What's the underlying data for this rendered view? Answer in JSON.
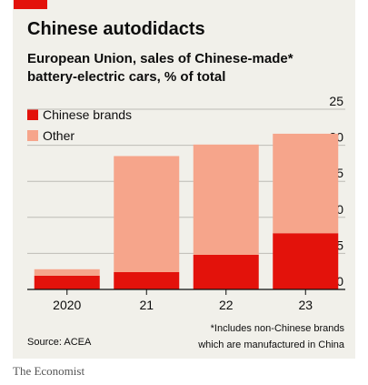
{
  "header": {
    "title": "Chinese autodidacts",
    "subtitle": "European Union, sales of Chinese-made* battery-electric cars, % of total"
  },
  "colors": {
    "chinese": "#e3120b",
    "other": "#f6a58b",
    "accent": "#e3120b",
    "panel": "#f1f0ea"
  },
  "legend": [
    {
      "label": "Chinese brands",
      "color": "#e3120b"
    },
    {
      "label": "Other",
      "color": "#f6a58b"
    }
  ],
  "chart_data": {
    "type": "bar",
    "stacked": true,
    "categories": [
      "2020",
      "21",
      "22",
      "23"
    ],
    "series": [
      {
        "name": "Chinese brands",
        "values": [
          1.9,
          2.4,
          4.8,
          7.8
        ]
      },
      {
        "name": "Other",
        "values": [
          0.9,
          16.1,
          15.3,
          13.8
        ]
      }
    ],
    "ylim": [
      0,
      25
    ],
    "yticks": [
      "0",
      "5",
      "10",
      "15",
      "20",
      "25"
    ],
    "y_axis_side": "right",
    "grid": true
  },
  "footer": {
    "source": "Source: ACEA",
    "note_line1": "*Includes non-Chinese brands",
    "note_line2": "which are manufactured in China",
    "brand": "The Economist"
  }
}
